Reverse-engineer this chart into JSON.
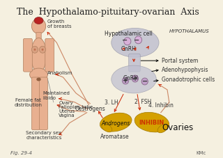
{
  "title": "The  Hypothalamo-pituitary-ovarian  Axis",
  "bg_color": "#f5f0e0",
  "fig_label": "Fig. 29-4",
  "author_label": "KMc",
  "hypothalamus_label": "HYPOTHALAMUS",
  "hypo_cell_label": "Hypothalamic cell",
  "gnrh_label1": "GnRH",
  "gnrh_label2": "GnRH",
  "portal_label": "Portal system",
  "adenohypo_label": "Adenohypophysis",
  "gonado_label": "Gonadotrophic cells",
  "lh_label": "3. LH",
  "fsh_label": "2. FSH",
  "inhibin_label": "4. Inhibin",
  "ovaries_label": "Ovaries",
  "androgens_label": "Androgens",
  "oestrogens_label": "Oestrogens",
  "aromatase_label": "Aromatase",
  "inhibin2_label": "INHIBIN",
  "anabolism_label": "Anabolism",
  "libido_label": "Maintained\nlibido",
  "breast_label": "Growth\nof breasts",
  "female_fat_label": "Female fat\ndistribution",
  "secondary_label": "Secondary sex\ncharacteristics",
  "ovary_labels": [
    "Ovary",
    "Fallopian tube",
    "Uterus",
    "Vagina"
  ],
  "hypo_shape_color": "#c0c0d0",
  "pituitary_shape_color": "#c0c0d0",
  "ovary_color": "#d4a000",
  "arrow_color": "#cc2200",
  "line_color": "#cc8866",
  "skin_color": "#e8b090",
  "text_color": "#222222",
  "small_font": 5.5,
  "medium_font": 6.5,
  "large_font": 8.5,
  "title_font": 9
}
